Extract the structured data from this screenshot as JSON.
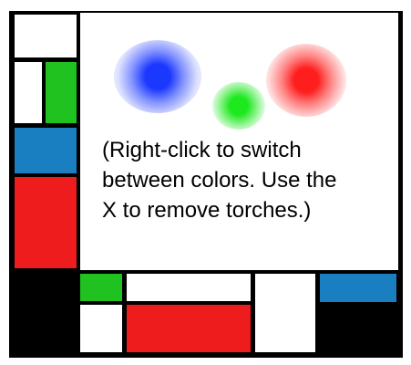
{
  "instructions": {
    "line1": "(Right-click to switch",
    "line2": "between colors. Use the",
    "line3": "X to remove torches.)"
  },
  "colors": {
    "frame": "#000000",
    "white": "#ffffff",
    "green": "#1fc21f",
    "blue": "#1a7fc0",
    "red": "#ee1c1c"
  },
  "torches": [
    {
      "name": "blue-torch",
      "color": "#1b38ff"
    },
    {
      "name": "green-torch",
      "color": "#1ee81e"
    },
    {
      "name": "red-torch",
      "color": "#ff1e1e"
    }
  ]
}
